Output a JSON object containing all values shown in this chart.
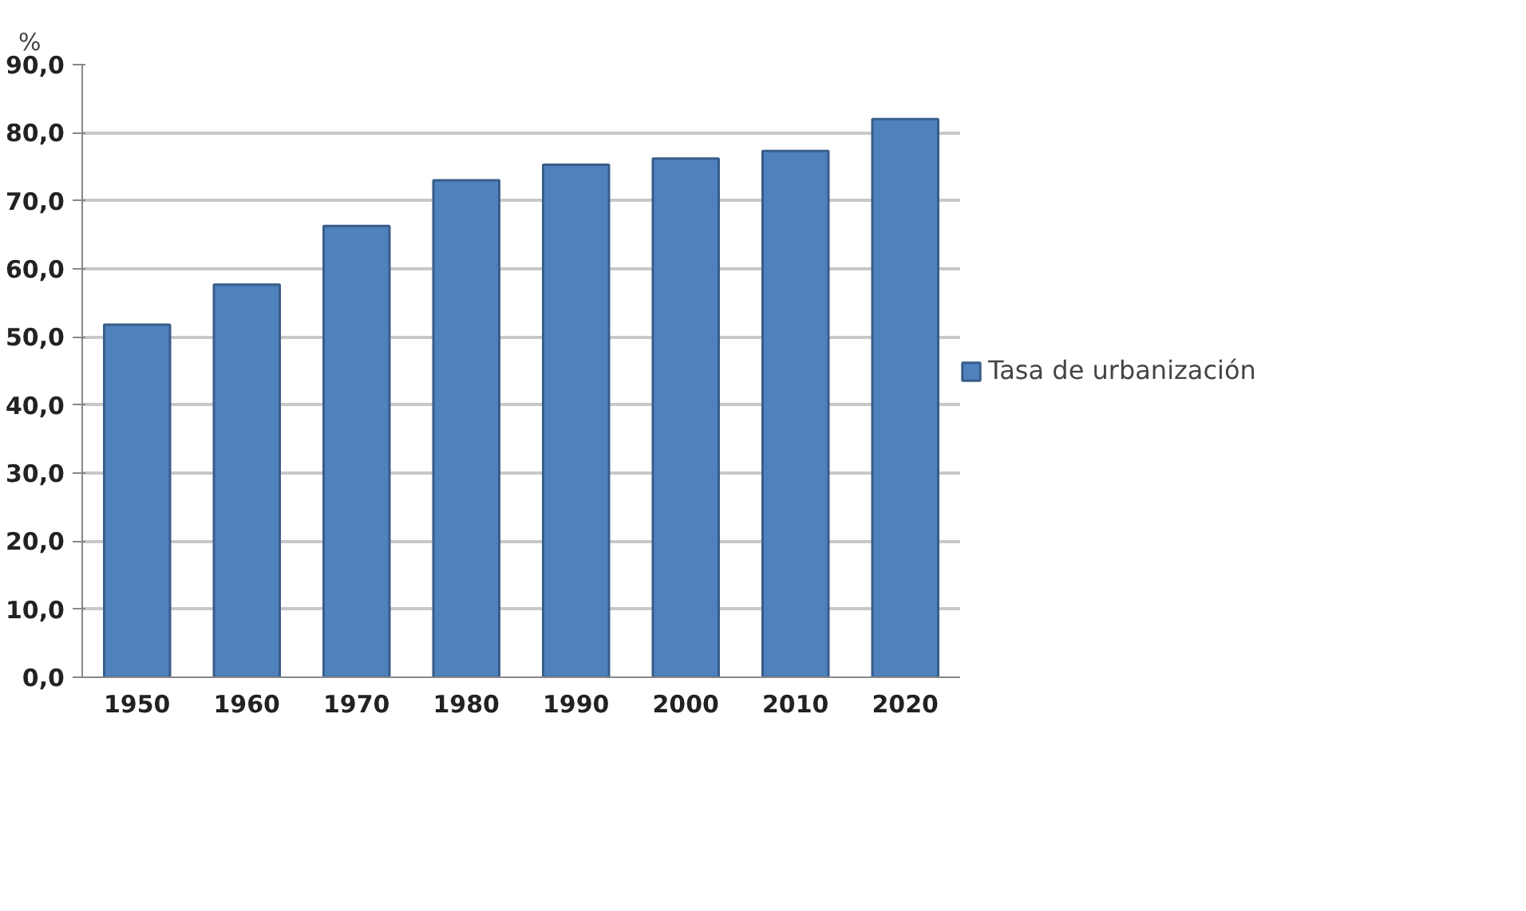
{
  "chart_data": {
    "type": "bar",
    "ylabel": "%",
    "categories": [
      "1950",
      "1960",
      "1970",
      "1980",
      "1990",
      "2000",
      "2010",
      "2020"
    ],
    "series": [
      {
        "name": "Tasa de urbanización",
        "color": "#4f81bd",
        "values": [
          51.8,
          57.7,
          66.3,
          73.0,
          75.3,
          76.2,
          77.3,
          82.0
        ]
      }
    ],
    "ylim": [
      0,
      90
    ],
    "yticks": [
      {
        "value": 0,
        "label": "0,0"
      },
      {
        "value": 10,
        "label": "10,0"
      },
      {
        "value": 20,
        "label": "20,0"
      },
      {
        "value": 30,
        "label": "30,0"
      },
      {
        "value": 40,
        "label": "40,0"
      },
      {
        "value": 50,
        "label": "50,0"
      },
      {
        "value": 60,
        "label": "60,0"
      },
      {
        "value": 70,
        "label": "70,0"
      },
      {
        "value": 80,
        "label": "80,0"
      },
      {
        "value": 90,
        "label": "90,0"
      }
    ],
    "grid": "y",
    "legend": "right"
  }
}
